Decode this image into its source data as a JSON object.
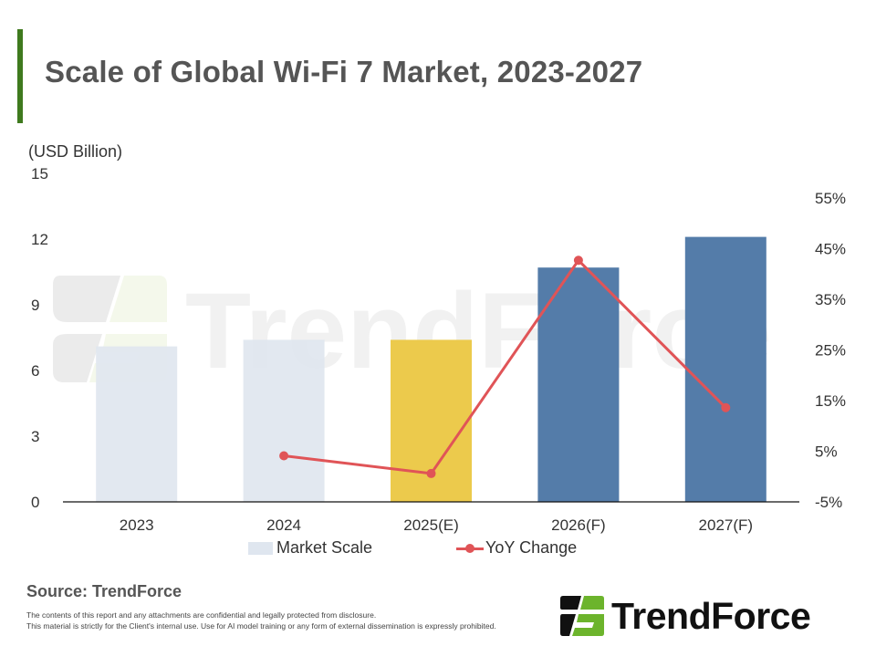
{
  "header": {
    "title": "Scale of Global Wi-Fi 7 Market, 2023-2027",
    "accent_color": "#3f7a1e"
  },
  "chart_data": {
    "type": "bar+line",
    "title": "Scale of Global Wi-Fi 7 Market, 2023-2027",
    "categories": [
      "2023",
      "2024",
      "2025(E)",
      "2026(F)",
      "2027(F)"
    ],
    "left_axis": {
      "label": "(USD Billion)",
      "ylim": [
        0,
        15
      ],
      "ticks": [
        "0",
        "3",
        "6",
        "9",
        "12",
        "15"
      ],
      "tick_values": [
        0,
        3,
        6,
        9,
        12,
        15
      ]
    },
    "right_axis": {
      "ylim": [
        -5,
        55
      ],
      "ticks": [
        "-5%",
        "5%",
        "15%",
        "25%",
        "35%",
        "45%",
        "55%"
      ],
      "tick_values": [
        -5,
        5,
        15,
        25,
        35,
        45,
        55
      ]
    },
    "series": [
      {
        "name": "Market Scale",
        "type": "bar",
        "axis": "left",
        "values": [
          7.1,
          7.4,
          7.4,
          10.7,
          12.1
        ],
        "colors": [
          "#dfe6ef",
          "#dfe6ef",
          "#ebc846",
          "#4e78a6",
          "#4e78a6"
        ]
      },
      {
        "name": "YoY Change",
        "type": "line",
        "axis": "right",
        "unit": "%",
        "values": [
          null,
          4.1,
          0.6,
          42.7,
          13.6
        ],
        "color": "#e05457"
      }
    ],
    "legend": {
      "position": "bottom",
      "items": [
        "Market Scale",
        "YoY Change"
      ],
      "swatch_color": "#dfe6ef"
    },
    "grid": false
  },
  "watermark": {
    "text": "TrendForce"
  },
  "footer": {
    "source": "Source: TrendForce",
    "disclaimer_line1": "The contents of this report and any attachments are confidential and legally protected from disclosure.",
    "disclaimer_line2": "This material is strictly for the Client's internal use. Use for AI model training or any form of external dissemination is expressly prohibited.",
    "logo_text": "TrendForce",
    "logo_green": "#6cb42c"
  }
}
